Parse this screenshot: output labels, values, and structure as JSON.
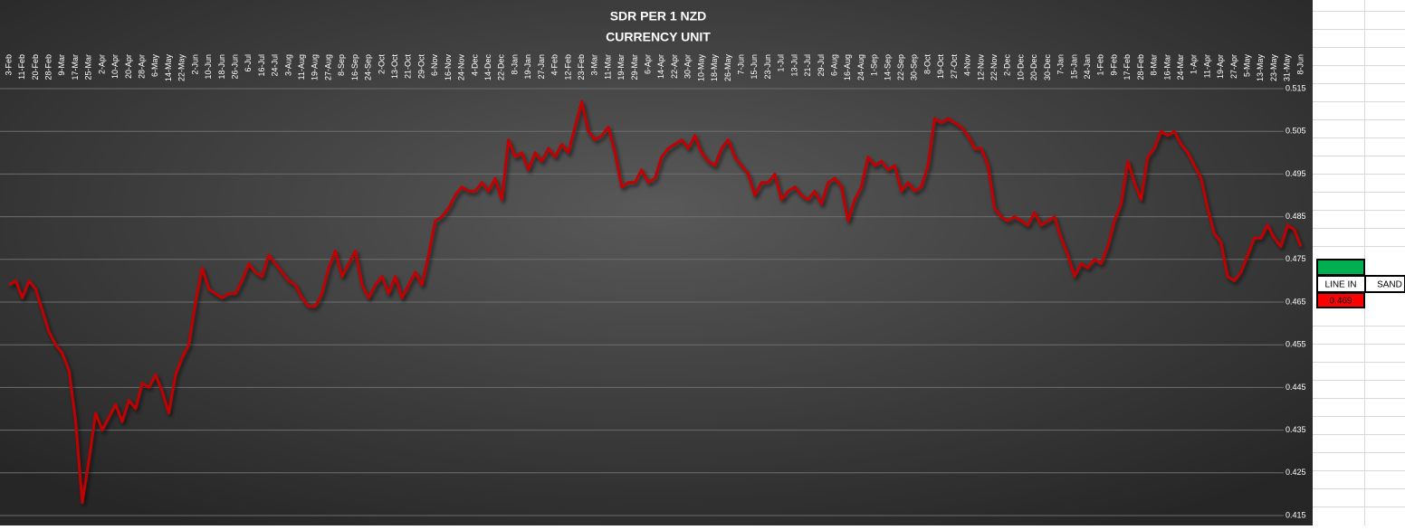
{
  "chart_data": {
    "type": "line",
    "title": "SDR PER 1 NZD",
    "subtitle": "CURRENCY UNIT",
    "categories": [
      "3-Feb",
      null,
      "11-Feb",
      null,
      "20-Feb",
      null,
      "28-Feb",
      null,
      "9-Mar",
      null,
      "17-Mar",
      null,
      "25-Mar",
      null,
      "2-Apr",
      null,
      "10-Apr",
      null,
      "20-Apr",
      null,
      "28-Apr",
      null,
      "6-May",
      null,
      "14-May",
      null,
      "22-May",
      null,
      "2-Jun",
      null,
      "10-Jun",
      null,
      "18-Jun",
      null,
      "26-Jun",
      null,
      "6-Jul",
      null,
      "16-Jul",
      null,
      "24-Jul",
      null,
      "3-Aug",
      null,
      "11-Aug",
      null,
      "19-Aug",
      null,
      "27-Aug",
      null,
      "8-Sep",
      null,
      "16-Sep",
      null,
      "24-Sep",
      null,
      "2-Oct",
      null,
      "13-Oct",
      null,
      "21-Oct",
      null,
      "29-Oct",
      null,
      "6-Nov",
      null,
      "16-Nov",
      null,
      "24-Nov",
      null,
      "4-Dec",
      null,
      "14-Dec",
      null,
      "22-Dec",
      null,
      "8-Jan",
      null,
      "19-Jan",
      null,
      "27-Jan",
      null,
      "4-Feb",
      null,
      "12-Feb",
      null,
      "23-Feb",
      null,
      "3-Mar",
      null,
      "11-Mar",
      null,
      "19-Mar",
      null,
      "29-Mar",
      null,
      "6-Apr",
      null,
      "14-Apr",
      null,
      "22-Apr",
      null,
      "30-Apr",
      null,
      "10-May",
      null,
      "18-May",
      null,
      "26-May",
      null,
      "7-Jun",
      null,
      "15-Jun",
      null,
      "23-Jun",
      null,
      "1-Jul",
      null,
      "13-Jul",
      null,
      "21-Jul",
      null,
      "29-Jul",
      null,
      "6-Aug",
      null,
      "16-Aug",
      null,
      "24-Aug",
      null,
      "1-Sep",
      null,
      "14-Sep",
      null,
      "22-Sep",
      null,
      "30-Sep",
      null,
      "8-Oct",
      null,
      "19-Oct",
      null,
      "27-Oct",
      null,
      "4-Nov",
      null,
      "12-Nov",
      null,
      "22-Nov",
      null,
      "2-Dec",
      null,
      "10-Dec",
      null,
      "20-Dec",
      null,
      "30-Dec",
      null,
      "7-Jan",
      null,
      "15-Jan",
      null,
      "24-Jan",
      null,
      "1-Feb",
      null,
      "9-Feb",
      null,
      "17-Feb",
      null,
      "28-Feb",
      null,
      "8-Mar",
      null,
      "16-Mar",
      null,
      "24-Mar",
      null,
      "1-Apr",
      null,
      "11-Apr",
      null,
      "19-Apr",
      null,
      "27-Apr",
      null,
      "5-May",
      null,
      "13-May",
      null,
      "23-May",
      null,
      "31-May",
      null,
      "8-Jun"
    ],
    "values": [
      0.469,
      0.47,
      0.466,
      0.47,
      0.468,
      0.463,
      0.458,
      0.455,
      0.453,
      0.449,
      0.437,
      0.418,
      0.428,
      0.439,
      0.435,
      0.438,
      0.441,
      0.437,
      0.442,
      0.44,
      0.446,
      0.445,
      0.448,
      0.444,
      0.439,
      0.448,
      0.452,
      0.455,
      0.465,
      0.473,
      0.468,
      0.467,
      0.466,
      0.467,
      0.467,
      0.47,
      0.474,
      0.472,
      0.471,
      0.476,
      0.474,
      0.472,
      0.47,
      0.469,
      0.466,
      0.464,
      0.464,
      0.467,
      0.473,
      0.477,
      0.471,
      0.474,
      0.477,
      0.469,
      0.466,
      0.469,
      0.471,
      0.467,
      0.471,
      0.466,
      0.469,
      0.472,
      0.469,
      0.476,
      0.484,
      0.485,
      0.487,
      0.49,
      0.492,
      0.491,
      0.491,
      0.493,
      0.491,
      0.494,
      0.489,
      0.503,
      0.499,
      0.5,
      0.496,
      0.5,
      0.498,
      0.501,
      0.499,
      0.502,
      0.5,
      0.506,
      0.512,
      0.505,
      0.503,
      0.504,
      0.506,
      0.5,
      0.492,
      0.493,
      0.493,
      0.496,
      0.493,
      0.494,
      0.499,
      0.501,
      0.502,
      0.503,
      0.501,
      0.504,
      0.5,
      0.498,
      0.497,
      0.501,
      0.503,
      0.499,
      0.497,
      0.495,
      0.49,
      0.493,
      0.493,
      0.495,
      0.489,
      0.491,
      0.492,
      0.49,
      0.489,
      0.491,
      0.488,
      0.493,
      0.494,
      0.492,
      0.484,
      0.489,
      0.492,
      0.499,
      0.497,
      0.498,
      0.496,
      0.497,
      0.491,
      0.493,
      0.491,
      0.492,
      0.497,
      0.508,
      0.507,
      0.508,
      0.507,
      0.506,
      0.504,
      0.501,
      0.501,
      0.497,
      0.487,
      0.485,
      0.484,
      0.485,
      0.484,
      0.483,
      0.486,
      0.483,
      0.484,
      0.485,
      0.48,
      0.476,
      0.471,
      0.474,
      0.473,
      0.475,
      0.474,
      0.478,
      0.484,
      0.488,
      0.498,
      0.493,
      0.489,
      0.499,
      0.501,
      0.505,
      0.504,
      0.505,
      0.502,
      0.5,
      0.497,
      0.494,
      0.487,
      0.481,
      0.479,
      0.471,
      0.47,
      0.472,
      0.476,
      0.48,
      0.48,
      0.483,
      0.48,
      0.478,
      0.483,
      0.482,
      0.478
    ],
    "color": "#c00000",
    "ylim": [
      0.415,
      0.515
    ],
    "yticks": [
      0.415,
      0.425,
      0.435,
      0.445,
      0.455,
      0.465,
      0.475,
      0.485,
      0.495,
      0.505,
      0.515
    ],
    "grid": true
  },
  "sheet": {
    "header_1": "LINE IN",
    "header_2": "SAND",
    "value": "0.469"
  }
}
